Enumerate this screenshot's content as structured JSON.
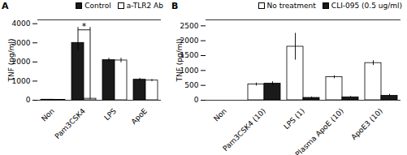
{
  "chart_data": [
    {
      "type": "bar",
      "title": "A",
      "categories": [
        "Non",
        "Pam3CSK4",
        "LPS",
        "ApoE"
      ],
      "series": [
        {
          "name": "Control",
          "color": "#1a1a1a",
          "values": [
            30,
            3000,
            2100,
            1075
          ],
          "errors": [
            10,
            400,
            100,
            75
          ]
        },
        {
          "name": "a-TLR2 Ab",
          "color": "#ffffff",
          "values": [
            25,
            80,
            2080,
            1030
          ],
          "errors": [
            10,
            50,
            120,
            60
          ]
        }
      ],
      "ylabel": "TNF (pg/ml)",
      "ylim": [
        0,
        4200
      ],
      "yticks": [
        0,
        1000,
        2000,
        3000,
        4000
      ],
      "legend": "upper right",
      "annotations": [
        {
          "text": "*",
          "x": "Pam3CSK4",
          "y": 3680
        }
      ]
    },
    {
      "type": "bar",
      "title": "B",
      "categories": [
        "Non",
        "Pam3CSK4 (10)",
        "LPS (1)",
        "Plasma ApoE (10)",
        "ApoE3 (10)"
      ],
      "series": [
        {
          "name": "No treatment",
          "color": "#ffffff",
          "values": [
            0,
            530,
            1800,
            775,
            1250
          ],
          "errors": [
            0,
            50,
            450,
            50,
            80
          ]
        },
        {
          "name": "CLI-095 (0.5 ug/ml)",
          "color": "#1a1a1a",
          "values": [
            0,
            560,
            80,
            100,
            150
          ],
          "errors": [
            0,
            60,
            30,
            30,
            50
          ]
        }
      ],
      "ylabel": "TNF (pg/ml)",
      "ylim": [
        0,
        2700
      ],
      "yticks": [
        0,
        500,
        1000,
        1500,
        2000,
        2500
      ],
      "legend": "upper right"
    }
  ]
}
